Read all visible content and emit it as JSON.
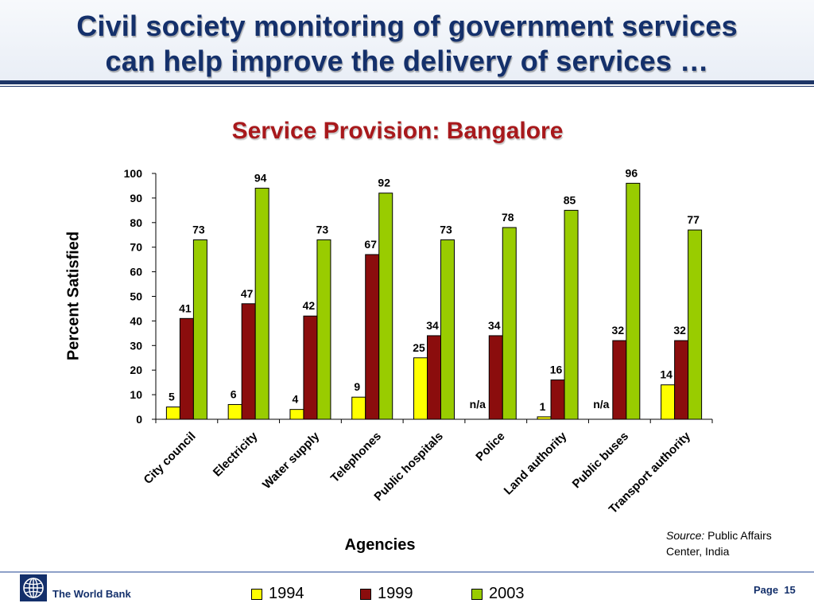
{
  "slide": {
    "title_line1": "Civil society monitoring of government services",
    "title_line2": "can help improve the delivery of services …",
    "source_label": "Source:",
    "source_text": "Public Affairs Center, India",
    "footer_org": "The World Bank",
    "page_label": "Page",
    "page_number": "15"
  },
  "colors": {
    "title": "#14306b",
    "chart_title": "#a8191c",
    "series_1994": "#ffff00",
    "series_1999": "#8b0d0d",
    "series_2003": "#99cc00"
  },
  "chart_data": {
    "type": "bar",
    "title": "Service Provision: Bangalore",
    "xlabel": "Agencies",
    "ylabel": "Percent  Satisfied",
    "ylim": [
      0,
      100
    ],
    "yticks": [
      0,
      10,
      20,
      30,
      40,
      50,
      60,
      70,
      80,
      90,
      100
    ],
    "grid": false,
    "legend_position": "bottom",
    "categories": [
      "City council",
      "Electricity",
      "Water supply",
      "Telephones",
      "Public hospitals",
      "Police",
      "Land authority",
      "Public buses",
      "Transport authority"
    ],
    "series": [
      {
        "name": "1994",
        "values": [
          5,
          6,
          4,
          9,
          25,
          null,
          1,
          null,
          14
        ],
        "labels": [
          "5",
          "6",
          "4",
          "9",
          "25",
          "n/a",
          "1",
          "n/a",
          "14"
        ]
      },
      {
        "name": "1999",
        "values": [
          41,
          47,
          42,
          67,
          34,
          34,
          16,
          32,
          32
        ],
        "labels": [
          "41",
          "47",
          "42",
          "67",
          "34",
          "34",
          "16",
          "32",
          "32"
        ]
      },
      {
        "name": "2003",
        "values": [
          73,
          94,
          73,
          92,
          73,
          78,
          85,
          96,
          77
        ],
        "labels": [
          "73",
          "94",
          "73",
          "92",
          "73",
          "78",
          "85",
          "96",
          "77"
        ]
      }
    ]
  }
}
